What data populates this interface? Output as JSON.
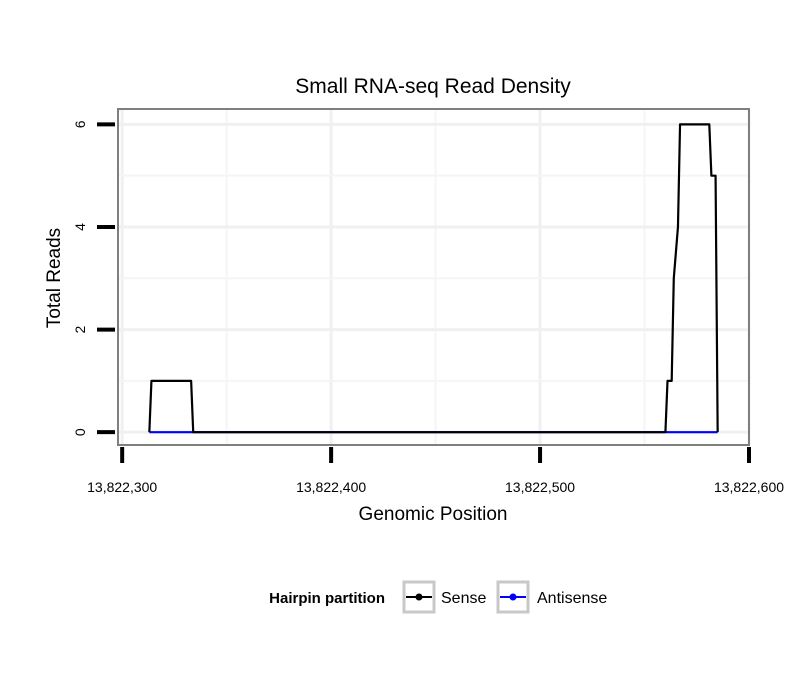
{
  "chart_data": {
    "type": "line",
    "title": "Small RNA-seq Read Density",
    "xlabel": "Genomic Position",
    "ylabel": "Total Reads",
    "xlim": [
      13822298,
      13822600
    ],
    "ylim": [
      -0.25,
      6.3
    ],
    "x_ticks": [
      13822300,
      13822400,
      13822500,
      13822600
    ],
    "x_tick_labels": [
      "13,822,300",
      "13,822,400",
      "13,822,500",
      "13,822,600"
    ],
    "y_ticks": [
      0,
      2,
      4,
      6
    ],
    "y_tick_labels": [
      "0",
      "2",
      "4",
      "6"
    ],
    "grid": true,
    "legend": {
      "title": "Hairpin partition",
      "position": "bottom",
      "entries": [
        "Sense",
        "Antisense"
      ]
    },
    "series": [
      {
        "name": "Sense",
        "color": "#000000",
        "x": [
          13822313,
          13822314,
          13822315,
          13822333,
          13822334,
          13822560,
          13822561,
          13822563,
          13822564,
          13822566,
          13822567,
          13822581,
          13822582,
          13822584,
          13822585
        ],
        "y": [
          0,
          1,
          1,
          1,
          0,
          0,
          1,
          1,
          3,
          4,
          6,
          6,
          5,
          5,
          0
        ]
      },
      {
        "name": "Antisense",
        "color": "#0000ff",
        "x": [
          13822313,
          13822334,
          13822560,
          13822585
        ],
        "y": [
          0,
          0,
          0,
          0
        ]
      }
    ]
  }
}
